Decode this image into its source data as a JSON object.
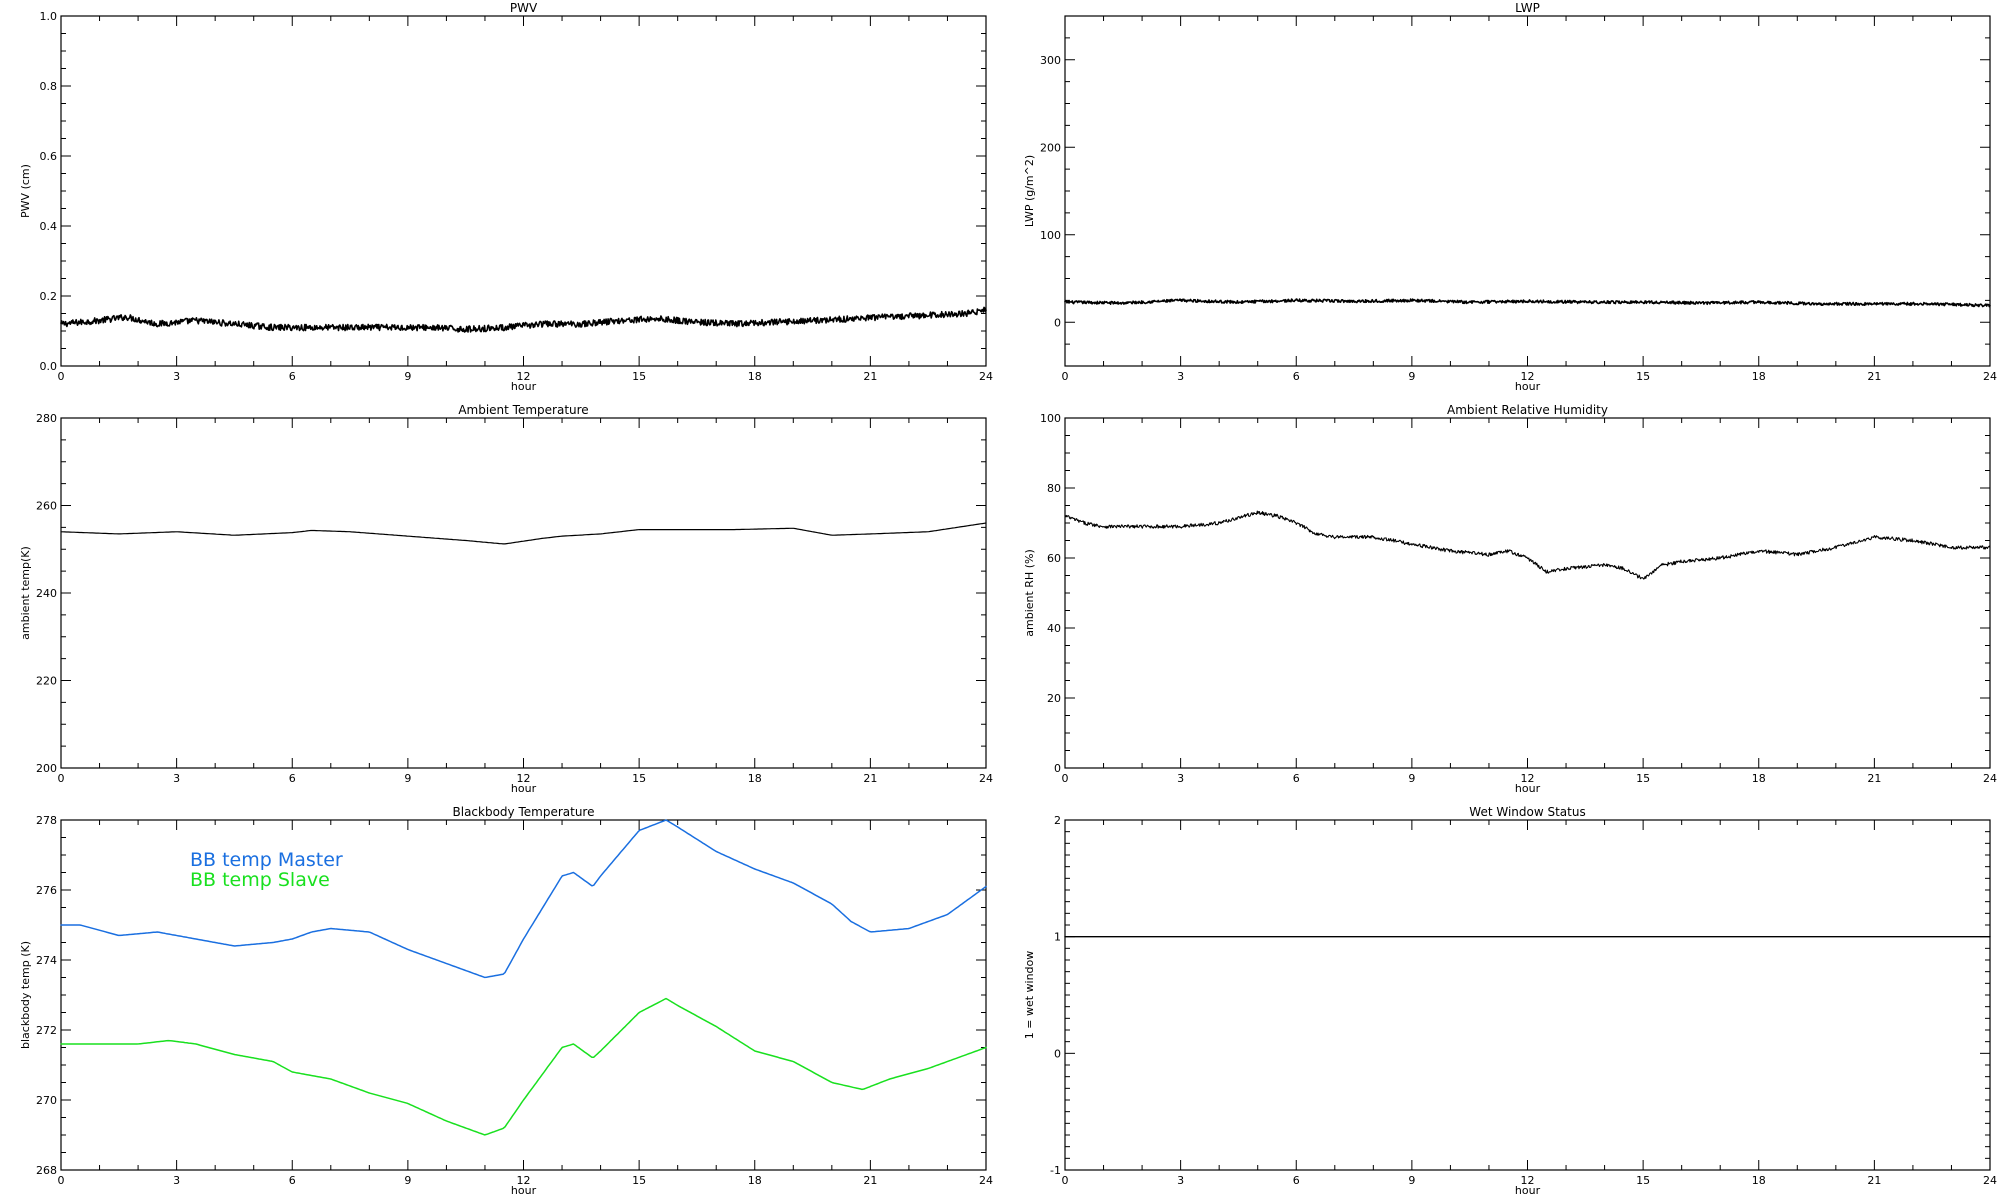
{
  "chart_data": [
    {
      "id": "pwv",
      "type": "line",
      "title": "PWV",
      "xlabel": "hour",
      "ylabel": "PWV (cm)",
      "xlim": [
        0,
        24
      ],
      "ylim": [
        0,
        1.0
      ],
      "xticks": [
        0,
        3,
        6,
        9,
        12,
        15,
        18,
        21,
        24
      ],
      "yticks": [
        0,
        0.2,
        0.4,
        0.6,
        0.8,
        1.0
      ],
      "ytick_labels": [
        "0.0",
        "0.2",
        "0.4",
        "0.6",
        "0.8",
        "1.0"
      ],
      "series": [
        {
          "color": "#000000",
          "noise": 0.009,
          "stroke_width": 1.6,
          "x": [
            0,
            1,
            1.7,
            2.5,
            3.5,
            4.5,
            5.5,
            6.5,
            7.5,
            8.5,
            9.5,
            10.5,
            11.5,
            12.5,
            13.5,
            14.5,
            15.5,
            16.5,
            17.5,
            18.5,
            19.5,
            20.5,
            21.5,
            22.5,
            23.5,
            24
          ],
          "values": [
            0.12,
            0.13,
            0.14,
            0.12,
            0.13,
            0.12,
            0.11,
            0.11,
            0.11,
            0.11,
            0.11,
            0.105,
            0.11,
            0.12,
            0.12,
            0.13,
            0.135,
            0.125,
            0.12,
            0.125,
            0.13,
            0.135,
            0.14,
            0.145,
            0.15,
            0.16
          ]
        }
      ]
    },
    {
      "id": "lwp",
      "type": "line",
      "title": "LWP",
      "xlabel": "hour",
      "ylabel": "LWP (g/m^2)",
      "xlim": [
        0,
        24
      ],
      "ylim": [
        -50,
        350
      ],
      "xticks": [
        0,
        3,
        6,
        9,
        12,
        15,
        18,
        21,
        24
      ],
      "yticks": [
        0,
        100,
        200,
        300
      ],
      "ytick_labels": [
        "0",
        "100",
        "200",
        "300"
      ],
      "series": [
        {
          "color": "#000000",
          "noise": 1.6,
          "stroke_width": 1.6,
          "x": [
            0,
            1.5,
            3,
            4.5,
            6,
            7.5,
            9,
            10.5,
            12,
            13.5,
            15,
            16.5,
            18,
            19.5,
            21,
            22.5,
            24
          ],
          "values": [
            23,
            22,
            25,
            23,
            25,
            24,
            25,
            23,
            24,
            23,
            23,
            22,
            23,
            21,
            21,
            21,
            19
          ]
        }
      ]
    },
    {
      "id": "ambient-temp",
      "type": "line",
      "title": "Ambient Temperature",
      "xlabel": "hour",
      "ylabel": "ambient temp(K)",
      "xlim": [
        0,
        24
      ],
      "ylim": [
        200,
        280
      ],
      "xticks": [
        0,
        3,
        6,
        9,
        12,
        15,
        18,
        21,
        24
      ],
      "yticks": [
        200,
        220,
        240,
        260,
        280
      ],
      "ytick_labels": [
        "200",
        "220",
        "240",
        "260",
        "280"
      ],
      "series": [
        {
          "color": "#000000",
          "noise": 0,
          "stroke_width": 1.2,
          "x": [
            0,
            1.5,
            3,
            4.5,
            6,
            6.5,
            7.5,
            9,
            10.5,
            11.5,
            12.5,
            13,
            14,
            15,
            16,
            17.5,
            19,
            20,
            21,
            22.5,
            24
          ],
          "values": [
            254,
            253.5,
            254,
            253.2,
            253.8,
            254.3,
            254,
            253,
            252,
            251.2,
            252.5,
            253,
            253.5,
            254.5,
            254.5,
            254.5,
            254.8,
            253.2,
            253.5,
            254,
            256
          ]
        }
      ]
    },
    {
      "id": "ambient-rh",
      "type": "line",
      "title": "Ambient Relative Humidity",
      "xlabel": "hour",
      "ylabel": "ambient RH (%)",
      "xlim": [
        0,
        24
      ],
      "ylim": [
        0,
        100
      ],
      "xticks": [
        0,
        3,
        6,
        9,
        12,
        15,
        18,
        21,
        24
      ],
      "yticks": [
        0,
        20,
        40,
        60,
        80,
        100
      ],
      "ytick_labels": [
        "0",
        "20",
        "40",
        "60",
        "80",
        "100"
      ],
      "series": [
        {
          "color": "#000000",
          "noise": 0.5,
          "stroke_width": 1.1,
          "x": [
            0,
            0.5,
            1,
            2,
            3,
            4,
            5,
            5.5,
            6,
            6.5,
            7,
            8,
            9,
            10,
            11,
            11.5,
            12,
            12.5,
            13,
            14,
            14.5,
            15,
            15.5,
            16,
            17,
            18,
            19,
            20,
            21,
            22,
            23,
            24
          ],
          "values": [
            72,
            70,
            69,
            69,
            69,
            70,
            73,
            72,
            70,
            67,
            66,
            66,
            64,
            62,
            61,
            62,
            60,
            56,
            57,
            58,
            57,
            54,
            58,
            59,
            60,
            62,
            61,
            63,
            66,
            65,
            63,
            63
          ]
        }
      ]
    },
    {
      "id": "blackbody-temp",
      "type": "line",
      "title": "Blackbody Temperature",
      "xlabel": "hour",
      "ylabel": "blackbody temp (K)",
      "xlim": [
        0,
        24
      ],
      "ylim": [
        268,
        278
      ],
      "xticks": [
        0,
        3,
        6,
        9,
        12,
        15,
        18,
        21,
        24
      ],
      "yticks": [
        268,
        270,
        272,
        274,
        276,
        278
      ],
      "ytick_labels": [
        "268",
        "270",
        "272",
        "274",
        "276",
        "278"
      ],
      "legend_position": "upper-left",
      "series": [
        {
          "name": "BB temp Master",
          "color": "#1a6fe0",
          "noise": 0,
          "stroke_width": 1.5,
          "x": [
            0,
            0.5,
            1.5,
            2.5,
            3,
            4,
            4.5,
            5.5,
            6,
            6.5,
            7,
            8,
            9,
            10,
            11,
            11.5,
            12,
            13,
            13.3,
            13.8,
            14,
            15,
            15.7,
            16,
            17,
            18,
            19,
            20,
            20.5,
            21,
            22,
            23,
            24
          ],
          "values": [
            275,
            275,
            274.7,
            274.8,
            274.7,
            274.5,
            274.4,
            274.5,
            274.6,
            274.8,
            274.9,
            274.8,
            274.3,
            273.9,
            273.5,
            273.6,
            274.6,
            276.4,
            276.5,
            276.1,
            276.4,
            277.7,
            278,
            277.8,
            277.1,
            276.6,
            276.2,
            275.6,
            275.1,
            274.8,
            274.9,
            275.3,
            276.1
          ]
        },
        {
          "name": "BB temp Slave",
          "color": "#19e01f",
          "noise": 0,
          "stroke_width": 1.5,
          "x": [
            0,
            1,
            2,
            2.8,
            3.5,
            4.5,
            5.5,
            6,
            7,
            8,
            9,
            10,
            11,
            11.5,
            12,
            13,
            13.3,
            13.8,
            14,
            15,
            15.7,
            16,
            17,
            18,
            19,
            20,
            20.8,
            21.5,
            22.5,
            23,
            24
          ],
          "values": [
            271.6,
            271.6,
            271.6,
            271.7,
            271.6,
            271.3,
            271.1,
            270.8,
            270.6,
            270.2,
            269.9,
            269.4,
            269.0,
            269.2,
            270.0,
            271.5,
            271.6,
            271.2,
            271.4,
            272.5,
            272.9,
            272.7,
            272.1,
            271.4,
            271.1,
            270.5,
            270.3,
            270.6,
            270.9,
            271.1,
            271.5
          ]
        }
      ]
    },
    {
      "id": "wet-window",
      "type": "line",
      "title": "Wet Window Status",
      "xlabel": "hour",
      "ylabel": "1 = wet window",
      "xlim": [
        0,
        24
      ],
      "ylim": [
        -1,
        2
      ],
      "xticks": [
        0,
        3,
        6,
        9,
        12,
        15,
        18,
        21,
        24
      ],
      "yticks": [
        -1,
        0,
        1,
        2
      ],
      "ytick_labels": [
        "-1",
        "0",
        "1",
        "2"
      ],
      "series": [
        {
          "color": "#000000",
          "noise": 0,
          "stroke_width": 1.4,
          "x": [
            0,
            24
          ],
          "values": [
            1,
            1
          ]
        }
      ]
    }
  ]
}
